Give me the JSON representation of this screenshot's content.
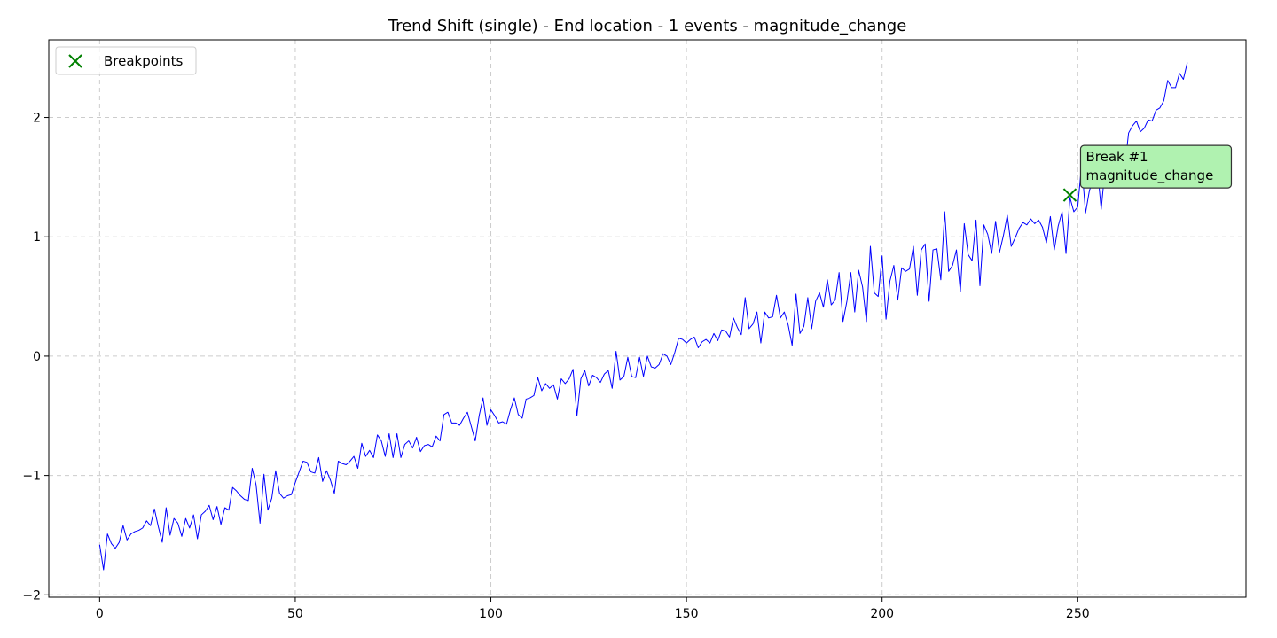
{
  "chart_data": {
    "type": "line",
    "title": "Trend Shift (single) - End location - 1 events - magnitude_change",
    "xlabel": "",
    "ylabel": "",
    "xlim": [
      -13,
      293
    ],
    "ylim": [
      -2.02,
      2.65
    ],
    "xticks": [
      0,
      50,
      100,
      150,
      200,
      250
    ],
    "yticks": [
      -2,
      -1,
      0,
      1,
      2
    ],
    "ytick_labels": [
      "−2",
      "−1",
      "0",
      "1",
      "2"
    ],
    "grid": true,
    "legend_position": "top-left",
    "legend": [
      {
        "label": "Breakpoints",
        "marker": "x",
        "color": "#008000"
      }
    ],
    "series": [
      {
        "color": "#0000ff",
        "x_start": 0,
        "x_step": 1,
        "values": [
          -1.58,
          -1.79,
          -1.49,
          -1.57,
          -1.61,
          -1.56,
          -1.42,
          -1.54,
          -1.49,
          -1.47,
          -1.46,
          -1.44,
          -1.38,
          -1.42,
          -1.28,
          -1.43,
          -1.56,
          -1.27,
          -1.5,
          -1.36,
          -1.4,
          -1.51,
          -1.36,
          -1.44,
          -1.33,
          -1.53,
          -1.33,
          -1.3,
          -1.25,
          -1.37,
          -1.26,
          -1.41,
          -1.27,
          -1.29,
          -1.1,
          -1.13,
          -1.17,
          -1.2,
          -1.21,
          -0.94,
          -1.08,
          -1.4,
          -0.99,
          -1.29,
          -1.19,
          -0.96,
          -1.15,
          -1.19,
          -1.17,
          -1.16,
          -1.06,
          -0.97,
          -0.88,
          -0.89,
          -0.97,
          -0.98,
          -0.85,
          -1.05,
          -0.96,
          -1.04,
          -1.15,
          -0.88,
          -0.9,
          -0.91,
          -0.88,
          -0.84,
          -0.94,
          -0.73,
          -0.84,
          -0.79,
          -0.85,
          -0.66,
          -0.71,
          -0.84,
          -0.65,
          -0.85,
          -0.65,
          -0.85,
          -0.74,
          -0.71,
          -0.77,
          -0.68,
          -0.8,
          -0.75,
          -0.74,
          -0.76,
          -0.67,
          -0.71,
          -0.49,
          -0.47,
          -0.56,
          -0.56,
          -0.58,
          -0.52,
          -0.47,
          -0.59,
          -0.71,
          -0.5,
          -0.35,
          -0.58,
          -0.45,
          -0.5,
          -0.56,
          -0.55,
          -0.57,
          -0.45,
          -0.35,
          -0.49,
          -0.52,
          -0.36,
          -0.35,
          -0.33,
          -0.18,
          -0.29,
          -0.23,
          -0.27,
          -0.24,
          -0.36,
          -0.19,
          -0.23,
          -0.19,
          -0.11,
          -0.5,
          -0.19,
          -0.12,
          -0.25,
          -0.16,
          -0.18,
          -0.22,
          -0.15,
          -0.12,
          -0.27,
          0.04,
          -0.2,
          -0.17,
          -0.01,
          -0.17,
          -0.18,
          -0.01,
          -0.17,
          0.0,
          -0.09,
          -0.1,
          -0.07,
          0.02,
          0.0,
          -0.07,
          0.03,
          0.15,
          0.14,
          0.11,
          0.14,
          0.16,
          0.07,
          0.12,
          0.14,
          0.11,
          0.19,
          0.13,
          0.22,
          0.21,
          0.16,
          0.32,
          0.24,
          0.18,
          0.49,
          0.23,
          0.27,
          0.37,
          0.11,
          0.37,
          0.32,
          0.33,
          0.51,
          0.32,
          0.37,
          0.26,
          0.09,
          0.52,
          0.19,
          0.25,
          0.49,
          0.23,
          0.46,
          0.53,
          0.41,
          0.64,
          0.43,
          0.47,
          0.7,
          0.29,
          0.46,
          0.7,
          0.37,
          0.72,
          0.58,
          0.29,
          0.92,
          0.53,
          0.5,
          0.84,
          0.31,
          0.63,
          0.76,
          0.47,
          0.74,
          0.71,
          0.73,
          0.92,
          0.51,
          0.89,
          0.94,
          0.46,
          0.89,
          0.9,
          0.64,
          1.21,
          0.71,
          0.76,
          0.89,
          0.54,
          1.11,
          0.85,
          0.8,
          1.14,
          0.59,
          1.1,
          1.02,
          0.86,
          1.13,
          0.87,
          1.01,
          1.18,
          0.92,
          0.99,
          1.07,
          1.12,
          1.1,
          1.15,
          1.11,
          1.14,
          1.08,
          0.95,
          1.17,
          0.89,
          1.09,
          1.21,
          0.86,
          1.33,
          1.21,
          1.25,
          1.61,
          1.2,
          1.39,
          1.47,
          1.58,
          1.23,
          1.58,
          1.67,
          1.65,
          1.53,
          1.73,
          1.58,
          1.87,
          1.93,
          1.97,
          1.88,
          1.91,
          1.98,
          1.97,
          2.06,
          2.08,
          2.14,
          2.31,
          2.25,
          2.25,
          2.37,
          2.32,
          2.46
        ]
      }
    ],
    "breakpoints": [
      {
        "x": 248,
        "y": 1.35,
        "marker": "x",
        "color": "#008000"
      }
    ],
    "annotations": [
      {
        "lines": [
          "Break #1",
          "magnitude_change"
        ],
        "x": 248,
        "y": 1.35,
        "bg": "#b0f2b0",
        "border": "#333333"
      }
    ]
  }
}
